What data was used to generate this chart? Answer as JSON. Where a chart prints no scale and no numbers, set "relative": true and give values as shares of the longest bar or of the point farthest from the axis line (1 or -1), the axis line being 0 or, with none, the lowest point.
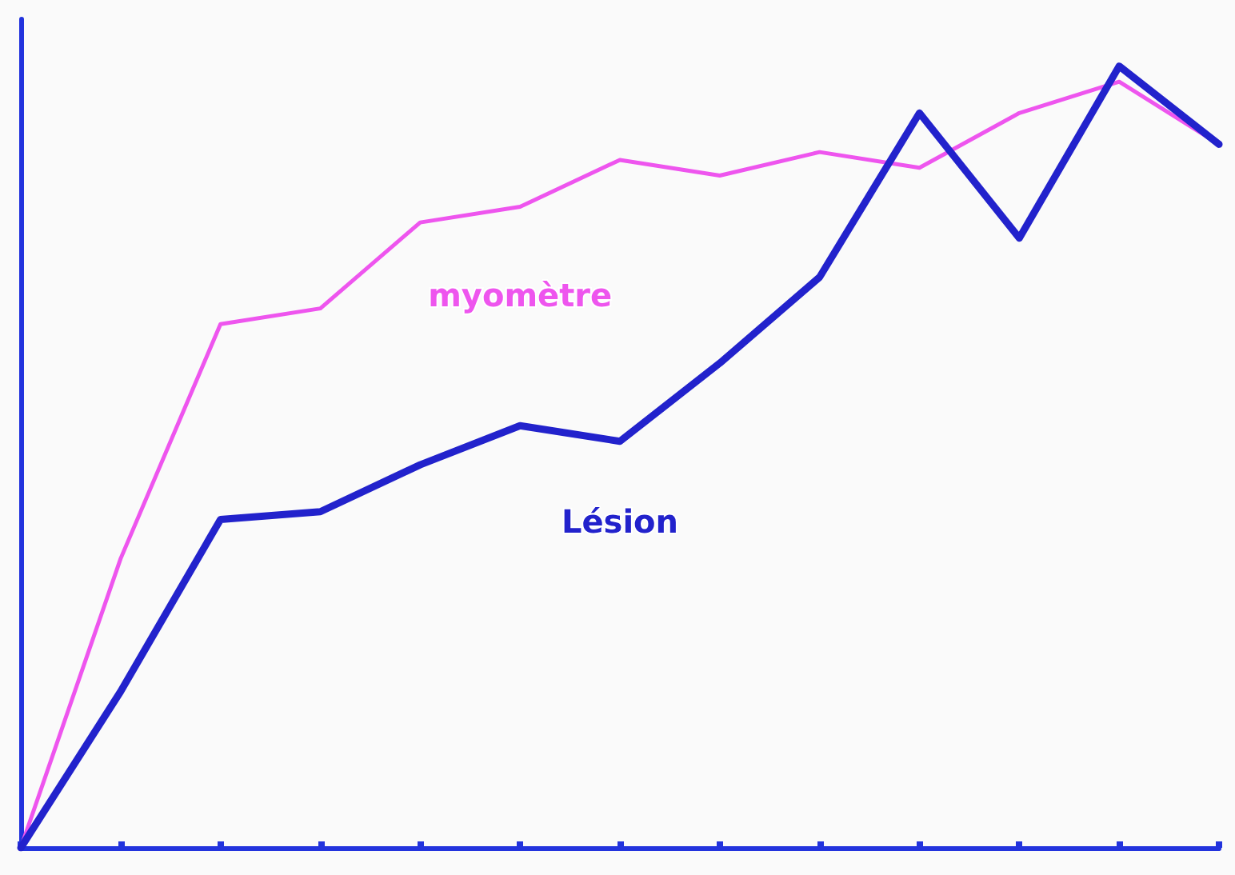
{
  "chart_data": {
    "type": "line",
    "relative": true,
    "legend": false,
    "line_style": "solid",
    "categories": [
      null,
      null,
      null,
      null,
      null,
      null,
      null,
      null,
      null,
      null,
      null,
      null,
      null
    ],
    "series": [
      {
        "name": "myomètre",
        "color": "#ee55ee",
        "values": [
          0,
          0.37,
          0.67,
          0.69,
          0.8,
          0.82,
          0.88,
          0.86,
          0.89,
          0.87,
          0.94,
          0.98,
          0.9
        ]
      },
      {
        "name": "Lésion",
        "color": "#2222cc",
        "values": [
          0,
          0.2,
          0.42,
          0.43,
          0.49,
          0.54,
          0.52,
          0.62,
          0.73,
          0.94,
          0.78,
          1.0,
          0.9
        ]
      }
    ]
  }
}
